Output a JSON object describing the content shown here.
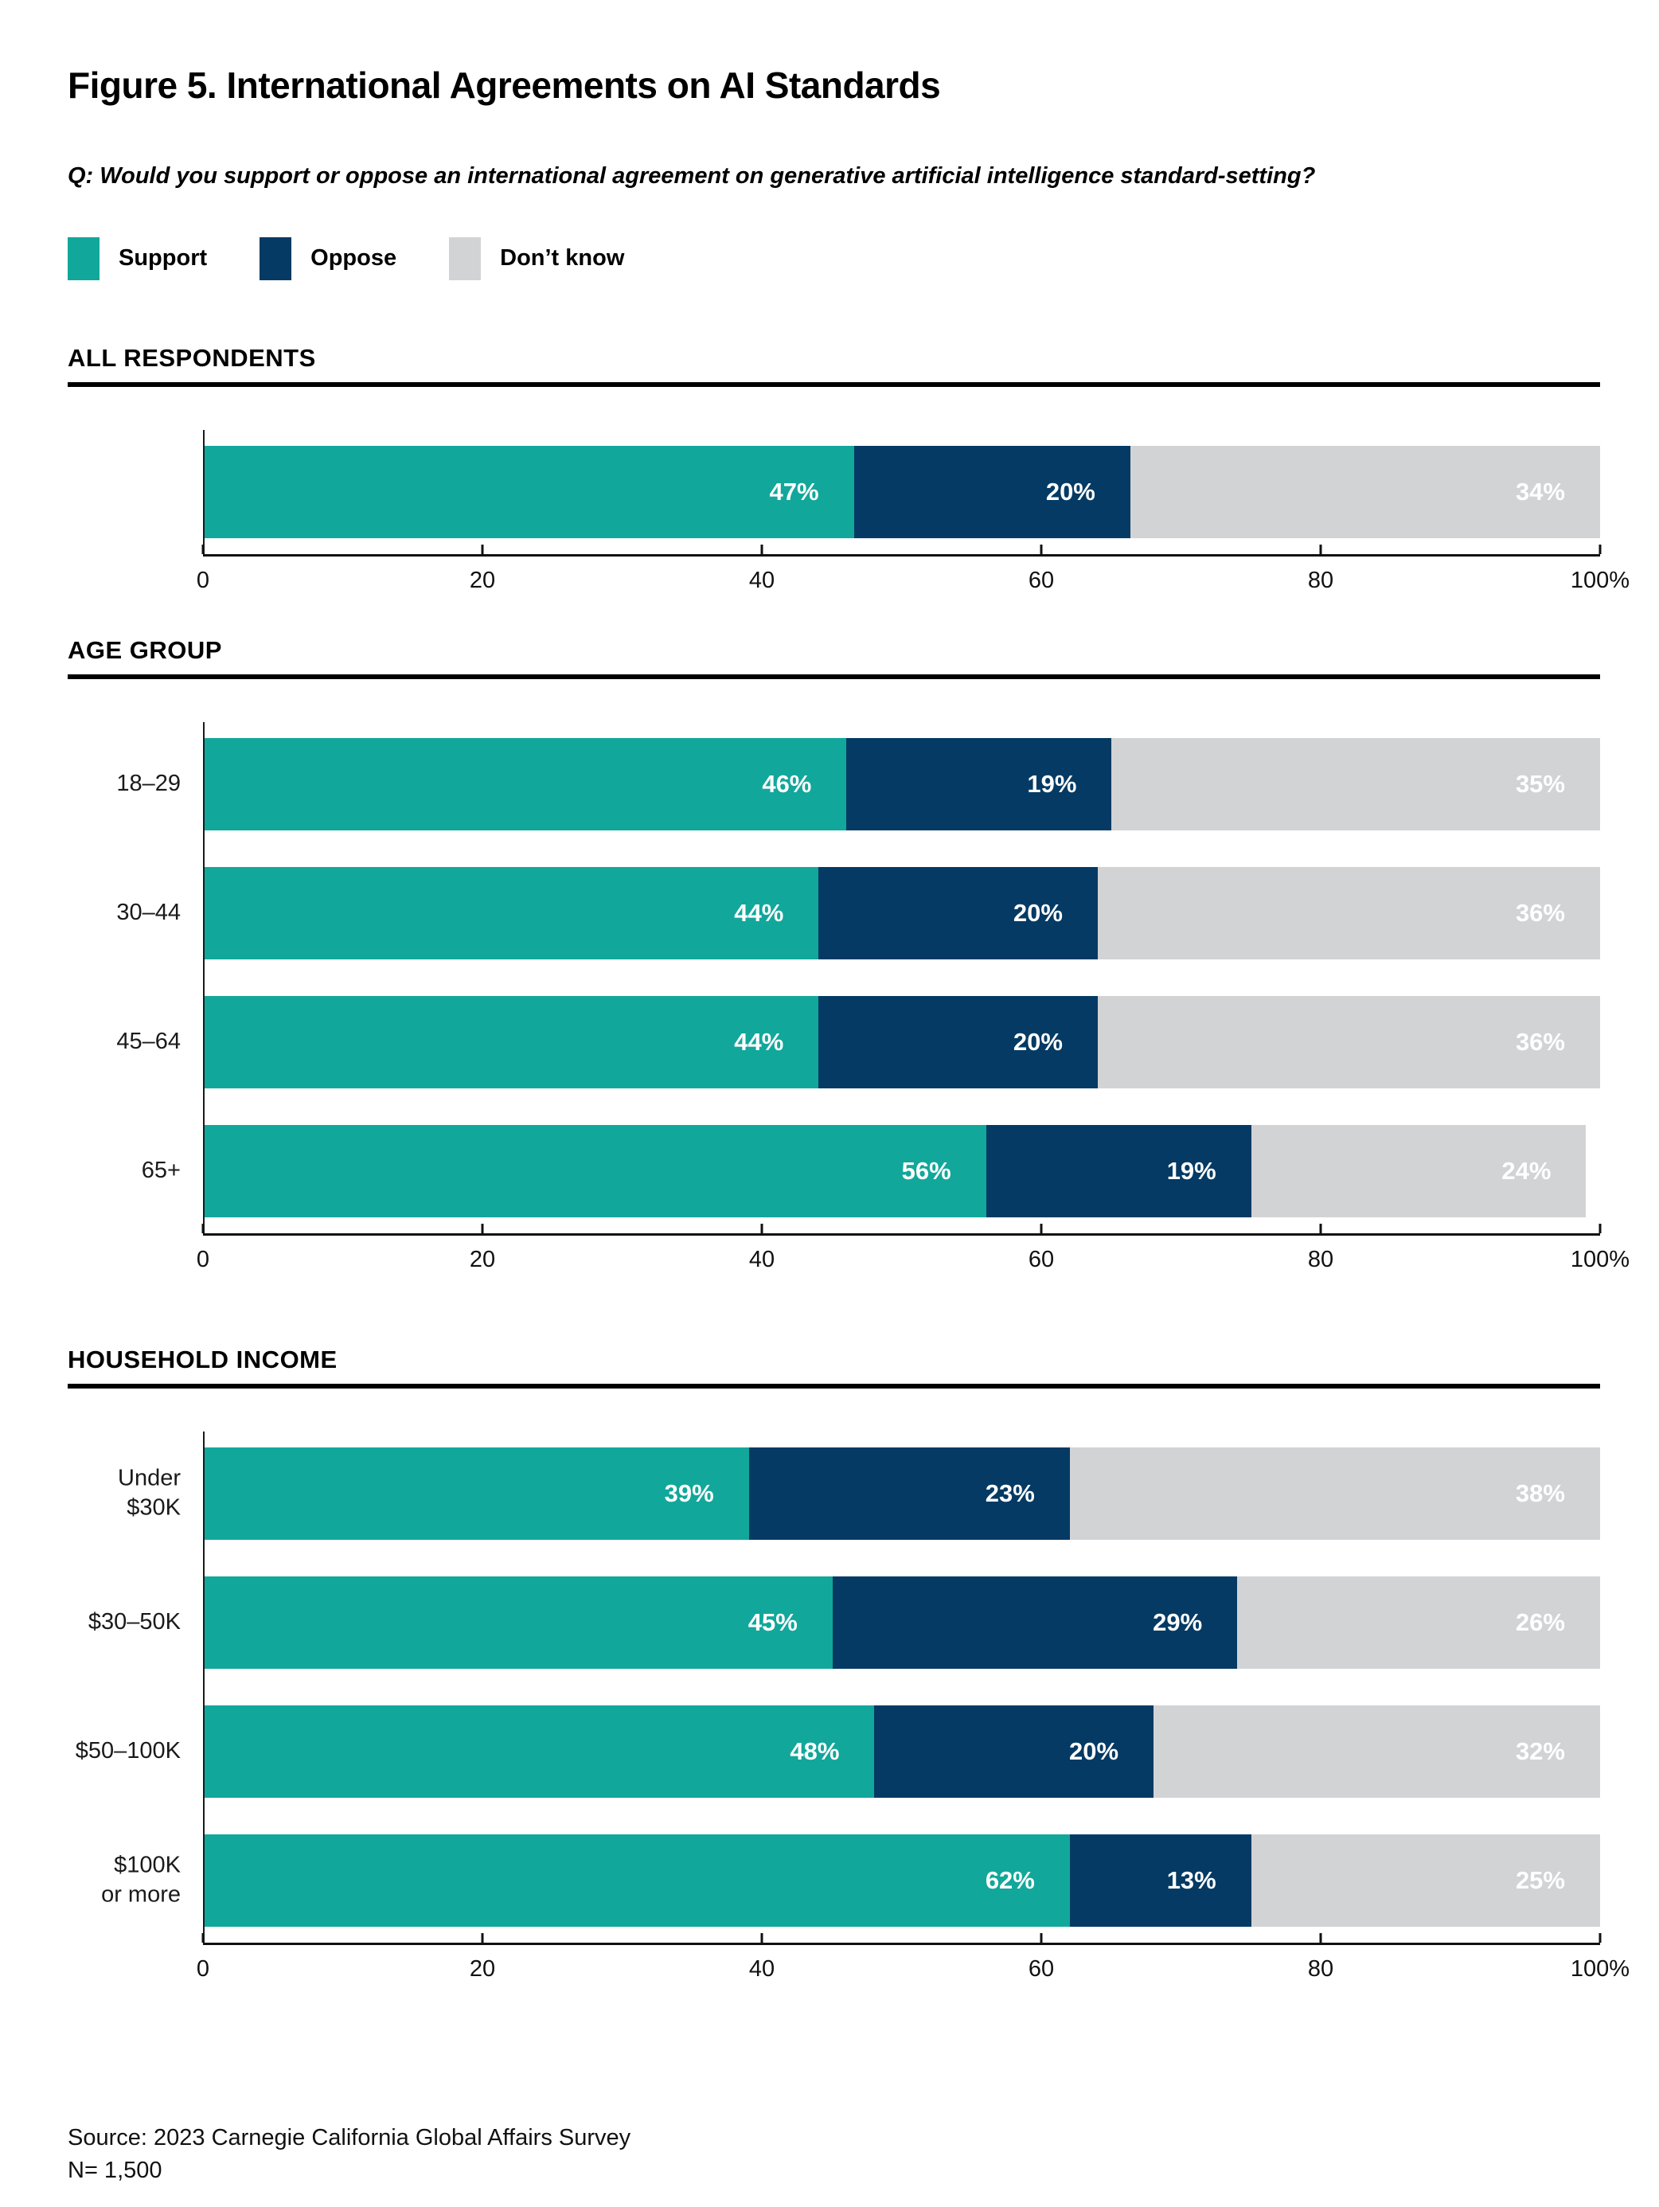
{
  "title": "Figure 5. International Agreements on AI Standards",
  "question": "Q: Would you support or oppose an international agreement on generative artificial intelligence standard-setting?",
  "legend": {
    "items": [
      {
        "label": "Support",
        "color": "#12A79B"
      },
      {
        "label": "Oppose",
        "color": "#043A63"
      },
      {
        "label": "Don’t know",
        "color": "#D2D3D5"
      }
    ]
  },
  "x_axis": {
    "tick_labels": [
      "0",
      "20",
      "40",
      "60",
      "80",
      "100%"
    ],
    "tick_positions": [
      0,
      20,
      40,
      60,
      80,
      100
    ],
    "max": 100
  },
  "chart_data": [
    {
      "type": "bar",
      "section": "ALL RESPONDENTS",
      "stacked": true,
      "orientation": "horizontal",
      "value_suffix": "%",
      "xlim": [
        0,
        100
      ],
      "categories": [
        ""
      ],
      "series": [
        {
          "name": "Support",
          "values": [
            47
          ]
        },
        {
          "name": "Oppose",
          "values": [
            20
          ]
        },
        {
          "name": "Don’t know",
          "values": [
            34
          ]
        }
      ]
    },
    {
      "type": "bar",
      "section": "AGE GROUP",
      "stacked": true,
      "orientation": "horizontal",
      "value_suffix": "%",
      "xlim": [
        0,
        100
      ],
      "categories": [
        "18–29",
        "30–44",
        "45–64",
        "65+"
      ],
      "series": [
        {
          "name": "Support",
          "values": [
            46,
            44,
            44,
            56
          ]
        },
        {
          "name": "Oppose",
          "values": [
            19,
            20,
            20,
            19
          ]
        },
        {
          "name": "Don’t know",
          "values": [
            35,
            36,
            36,
            24
          ]
        }
      ]
    },
    {
      "type": "bar",
      "section": "HOUSEHOLD INCOME",
      "stacked": true,
      "orientation": "horizontal",
      "value_suffix": "%",
      "xlim": [
        0,
        100
      ],
      "categories": [
        "Under $30K",
        "$30–50K",
        "$50–100K",
        "$100K\nor more"
      ],
      "series": [
        {
          "name": "Support",
          "values": [
            39,
            45,
            48,
            62
          ]
        },
        {
          "name": "Oppose",
          "values": [
            23,
            29,
            20,
            13
          ]
        },
        {
          "name": "Don’t know",
          "values": [
            38,
            26,
            32,
            25
          ]
        }
      ]
    }
  ],
  "source": {
    "line1": "Source: 2023 Carnegie California Global Affairs Survey",
    "line2": "N= 1,500"
  }
}
